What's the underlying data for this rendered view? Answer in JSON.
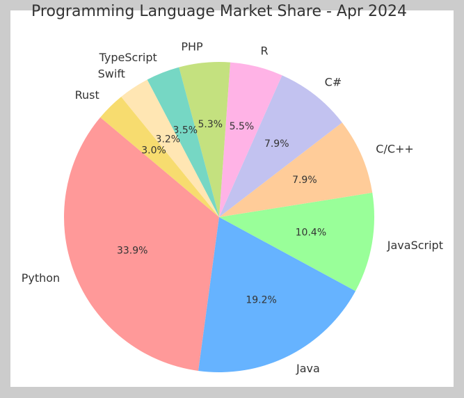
{
  "chart_data": {
    "type": "pie",
    "title": "Programming Language Market Share - Apr 2024",
    "categories": [
      "Python",
      "Java",
      "JavaScript",
      "C/C++",
      "C#",
      "R",
      "PHP",
      "TypeScript",
      "Swift",
      "Rust"
    ],
    "values": [
      33.9,
      19.2,
      10.4,
      7.9,
      7.9,
      5.5,
      5.3,
      3.5,
      3.2,
      3.0
    ],
    "value_labels": [
      "33.9%",
      "19.2%",
      "10.4%",
      "7.9%",
      "7.9%",
      "5.5%",
      "5.3%",
      "3.5%",
      "3.2%",
      "3.0%"
    ],
    "colors": [
      "#ff9999",
      "#66b3ff",
      "#99ff99",
      "#ffcc99",
      "#c2c2f0",
      "#ffb3e6",
      "#c4e17f",
      "#76d7c4",
      "#ffe6b3",
      "#f7dc6f"
    ]
  }
}
